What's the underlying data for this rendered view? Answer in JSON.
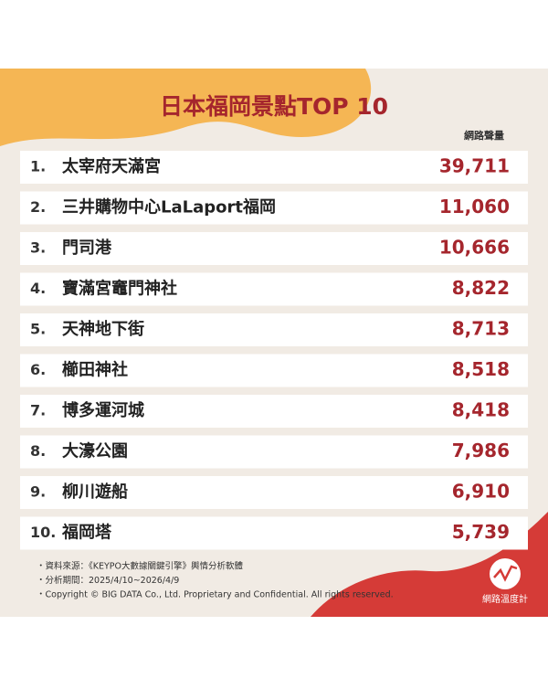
{
  "header": {
    "title": "日本福岡景點TOP 10"
  },
  "table": {
    "column_header": "網路聲量",
    "rows": [
      {
        "rank": "1.",
        "name": "太宰府天滿宮",
        "value": "39,711"
      },
      {
        "rank": "2.",
        "name": "三井購物中心LaLaport福岡",
        "value": "11,060"
      },
      {
        "rank": "3.",
        "name": "門司港",
        "value": "10,666"
      },
      {
        "rank": "4.",
        "name": "寶滿宮竈門神社",
        "value": "8,822"
      },
      {
        "rank": "5.",
        "name": "天神地下街",
        "value": "8,713"
      },
      {
        "rank": "6.",
        "name": "櫛田神社",
        "value": "8,518"
      },
      {
        "rank": "7.",
        "name": "博多運河城",
        "value": "8,418"
      },
      {
        "rank": "8.",
        "name": "大濠公園",
        "value": "7,986"
      },
      {
        "rank": "9.",
        "name": "柳川遊船",
        "value": "6,910"
      },
      {
        "rank": "10.",
        "name": "福岡塔",
        "value": "5,739"
      }
    ]
  },
  "footer": {
    "notes": [
      "・資料來源：《KEYPO大數據關鍵引擎》輿情分析軟體",
      "・分析期間：2025/4/10~2026/4/9",
      "・Copyright © BIG DATA Co., Ltd. Proprietary and Confidential. All rights reserved."
    ]
  },
  "logo": {
    "text": "網路溫度計"
  }
}
